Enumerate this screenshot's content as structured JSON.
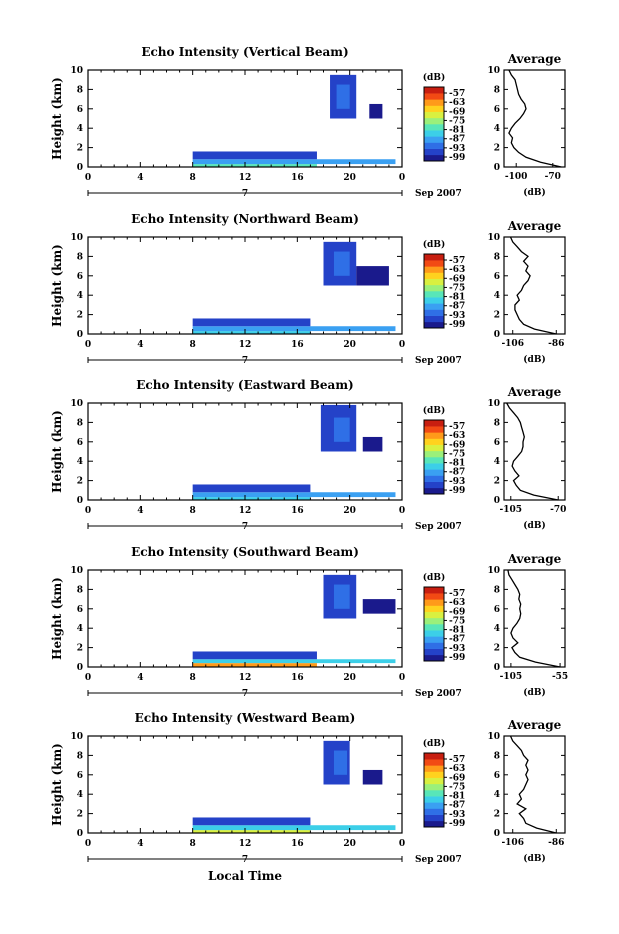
{
  "chart_data": {
    "type": "heatmap",
    "x_axis_label": "Local Time",
    "colorbar": {
      "unit": "(dB)",
      "ticks": [
        "-57",
        "-63",
        "-69",
        "-75",
        "-81",
        "-87",
        "-93",
        "-99"
      ],
      "colors": [
        "#1a1a8c",
        "#2442c8",
        "#2f6fe6",
        "#3aa0f2",
        "#3ccfe8",
        "#58e6b8",
        "#9bf07a",
        "#d9f040",
        "#ffd21e",
        "#ff9a1a",
        "#f24a14",
        "#c81e10"
      ]
    },
    "x_ticks": [
      "0",
      "4",
      "8",
      "12",
      "16",
      "20",
      "0"
    ],
    "x_range": [
      0,
      24
    ],
    "y_ticks": [
      "0",
      "2",
      "4",
      "6",
      "8",
      "10"
    ],
    "y_range": [
      0,
      10
    ],
    "date_marker": "7",
    "date_label": "Sep 2007",
    "ylabel": "Height (km)",
    "profile_title": "Average",
    "profile_xlabel": "(dB)",
    "panels": [
      {
        "title": "Echo Intensity (Vertical Beam)",
        "profile_xticks": [
          "-100",
          "-70"
        ],
        "profile_xrange": [
          -110,
          -60
        ],
        "profile": [
          [
            0.0,
            -63
          ],
          [
            0.5,
            -80
          ],
          [
            1.0,
            -92
          ],
          [
            1.5,
            -98
          ],
          [
            2.0,
            -102
          ],
          [
            2.5,
            -104
          ],
          [
            3.0,
            -103
          ],
          [
            3.5,
            -106
          ],
          [
            4.0,
            -104
          ],
          [
            4.5,
            -101
          ],
          [
            5.0,
            -97
          ],
          [
            5.5,
            -94
          ],
          [
            6.0,
            -92
          ],
          [
            6.5,
            -93
          ],
          [
            7.0,
            -96
          ],
          [
            7.5,
            -98
          ],
          [
            8.0,
            -99
          ],
          [
            8.5,
            -100
          ],
          [
            9.0,
            -101
          ],
          [
            9.5,
            -104
          ],
          [
            10.0,
            -106
          ]
        ],
        "blobs": [
          {
            "t0": 8,
            "t1": 17.5,
            "h0": 0.0,
            "h1": 0.3,
            "c": 5
          },
          {
            "t0": 8,
            "t1": 23.5,
            "h0": 0.3,
            "h1": 0.8,
            "c": 3
          },
          {
            "t0": 8,
            "t1": 17.5,
            "h0": 0.8,
            "h1": 1.6,
            "c": 1
          },
          {
            "t0": 18.5,
            "t1": 20.5,
            "h0": 5.0,
            "h1": 9.5,
            "c": 1
          },
          {
            "t0": 19.0,
            "t1": 20.0,
            "h0": 6.0,
            "h1": 8.5,
            "c": 2
          },
          {
            "t0": 21.5,
            "t1": 22.5,
            "h0": 5.0,
            "h1": 6.5,
            "c": 0
          }
        ]
      },
      {
        "title": "Echo Intensity (Northward Beam)",
        "profile_xticks": [
          "-106",
          "-86"
        ],
        "profile_xrange": [
          -110,
          -82
        ],
        "profile": [
          [
            0.0,
            -86
          ],
          [
            0.5,
            -96
          ],
          [
            1.0,
            -101
          ],
          [
            1.5,
            -103
          ],
          [
            2.0,
            -104
          ],
          [
            2.5,
            -105
          ],
          [
            3.0,
            -105
          ],
          [
            3.5,
            -103
          ],
          [
            4.0,
            -104
          ],
          [
            4.5,
            -102
          ],
          [
            5.0,
            -101
          ],
          [
            5.5,
            -99
          ],
          [
            6.0,
            -98
          ],
          [
            6.5,
            -100
          ],
          [
            7.0,
            -99
          ],
          [
            7.5,
            -101
          ],
          [
            8.0,
            -99
          ],
          [
            8.5,
            -102
          ],
          [
            9.0,
            -104
          ],
          [
            9.5,
            -106
          ],
          [
            10.0,
            -107
          ]
        ],
        "blobs": [
          {
            "t0": 8,
            "t1": 17.0,
            "h0": 0.0,
            "h1": 0.3,
            "c": 4
          },
          {
            "t0": 8,
            "t1": 23.5,
            "h0": 0.3,
            "h1": 0.8,
            "c": 3
          },
          {
            "t0": 8,
            "t1": 17.0,
            "h0": 0.8,
            "h1": 1.6,
            "c": 1
          },
          {
            "t0": 18.0,
            "t1": 20.5,
            "h0": 5.0,
            "h1": 9.5,
            "c": 1
          },
          {
            "t0": 18.8,
            "t1": 20.0,
            "h0": 6.0,
            "h1": 8.5,
            "c": 2
          },
          {
            "t0": 20.5,
            "t1": 23.0,
            "h0": 5.0,
            "h1": 7.0,
            "c": 0
          }
        ]
      },
      {
        "title": "Echo Intensity (Eastward Beam)",
        "profile_xticks": [
          "-105",
          "-70"
        ],
        "profile_xrange": [
          -110,
          -65
        ],
        "profile": [
          [
            0.0,
            -70
          ],
          [
            0.5,
            -88
          ],
          [
            1.0,
            -98
          ],
          [
            1.5,
            -101
          ],
          [
            2.0,
            -103
          ],
          [
            2.5,
            -99
          ],
          [
            3.0,
            -102
          ],
          [
            3.5,
            -104
          ],
          [
            4.0,
            -103
          ],
          [
            4.5,
            -100
          ],
          [
            5.0,
            -97
          ],
          [
            5.5,
            -96
          ],
          [
            6.0,
            -96
          ],
          [
            6.5,
            -95
          ],
          [
            7.0,
            -96
          ],
          [
            7.5,
            -97
          ],
          [
            8.0,
            -98
          ],
          [
            8.5,
            -100
          ],
          [
            9.0,
            -103
          ],
          [
            9.5,
            -106
          ],
          [
            10.0,
            -108
          ]
        ],
        "blobs": [
          {
            "t0": 8,
            "t1": 17.0,
            "h0": 0.0,
            "h1": 0.3,
            "c": 4
          },
          {
            "t0": 8,
            "t1": 23.5,
            "h0": 0.3,
            "h1": 0.8,
            "c": 3
          },
          {
            "t0": 8,
            "t1": 17.0,
            "h0": 0.8,
            "h1": 1.6,
            "c": 1
          },
          {
            "t0": 17.8,
            "t1": 20.5,
            "h0": 5.0,
            "h1": 9.8,
            "c": 1
          },
          {
            "t0": 18.8,
            "t1": 20.0,
            "h0": 6.0,
            "h1": 8.5,
            "c": 2
          },
          {
            "t0": 21.0,
            "t1": 22.5,
            "h0": 5.0,
            "h1": 6.5,
            "c": 0
          }
        ]
      },
      {
        "title": "Echo Intensity (Southward Beam)",
        "profile_xticks": [
          "-105",
          "-55"
        ],
        "profile_xrange": [
          -112,
          -50
        ],
        "profile": [
          [
            0.0,
            -55
          ],
          [
            0.5,
            -80
          ],
          [
            1.0,
            -96
          ],
          [
            1.5,
            -101
          ],
          [
            2.0,
            -104
          ],
          [
            2.5,
            -98
          ],
          [
            3.0,
            -103
          ],
          [
            3.5,
            -105
          ],
          [
            4.0,
            -103
          ],
          [
            4.5,
            -99
          ],
          [
            5.0,
            -96
          ],
          [
            5.5,
            -95
          ],
          [
            6.0,
            -96
          ],
          [
            6.5,
            -95
          ],
          [
            7.0,
            -97
          ],
          [
            7.5,
            -96
          ],
          [
            8.0,
            -98
          ],
          [
            8.5,
            -101
          ],
          [
            9.0,
            -104
          ],
          [
            9.5,
            -107
          ],
          [
            10.0,
            -108
          ]
        ],
        "blobs": [
          {
            "t0": 8,
            "t1": 17.5,
            "h0": 0.0,
            "h1": 0.4,
            "c": 9
          },
          {
            "t0": 8,
            "t1": 23.5,
            "h0": 0.4,
            "h1": 0.8,
            "c": 4
          },
          {
            "t0": 8,
            "t1": 17.5,
            "h0": 0.8,
            "h1": 1.6,
            "c": 1
          },
          {
            "t0": 18.0,
            "t1": 20.5,
            "h0": 5.0,
            "h1": 9.5,
            "c": 1
          },
          {
            "t0": 18.8,
            "t1": 20.0,
            "h0": 6.0,
            "h1": 8.5,
            "c": 2
          },
          {
            "t0": 21.0,
            "t1": 23.5,
            "h0": 5.5,
            "h1": 7.0,
            "c": 0
          }
        ]
      },
      {
        "title": "Echo Intensity (Westward Beam)",
        "profile_xticks": [
          "-106",
          "-86"
        ],
        "profile_xrange": [
          -110,
          -82
        ],
        "profile": [
          [
            0.0,
            -86
          ],
          [
            0.5,
            -95
          ],
          [
            1.0,
            -100
          ],
          [
            1.5,
            -101
          ],
          [
            2.0,
            -103
          ],
          [
            2.5,
            -100
          ],
          [
            3.0,
            -104
          ],
          [
            3.5,
            -102
          ],
          [
            4.0,
            -103
          ],
          [
            4.5,
            -101
          ],
          [
            5.0,
            -100
          ],
          [
            5.5,
            -99
          ],
          [
            6.0,
            -100
          ],
          [
            6.5,
            -99
          ],
          [
            7.0,
            -100
          ],
          [
            7.5,
            -99
          ],
          [
            8.0,
            -101
          ],
          [
            8.5,
            -102
          ],
          [
            9.0,
            -104
          ],
          [
            9.5,
            -106
          ],
          [
            10.0,
            -107
          ]
        ],
        "blobs": [
          {
            "t0": 8,
            "t1": 17.0,
            "h0": 0.0,
            "h1": 0.3,
            "c": 7
          },
          {
            "t0": 8,
            "t1": 23.5,
            "h0": 0.3,
            "h1": 0.8,
            "c": 4
          },
          {
            "t0": 8,
            "t1": 17.0,
            "h0": 0.8,
            "h1": 1.6,
            "c": 1
          },
          {
            "t0": 18.0,
            "t1": 20.0,
            "h0": 5.0,
            "h1": 9.5,
            "c": 1
          },
          {
            "t0": 18.8,
            "t1": 19.8,
            "h0": 6.0,
            "h1": 8.5,
            "c": 2
          },
          {
            "t0": 21.0,
            "t1": 22.5,
            "h0": 5.0,
            "h1": 6.5,
            "c": 0
          }
        ]
      }
    ]
  }
}
